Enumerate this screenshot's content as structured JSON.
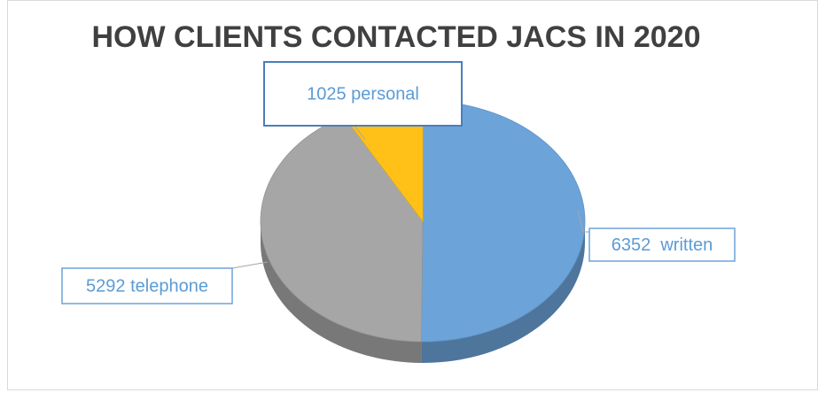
{
  "chart_data": {
    "type": "pie",
    "title": "HOW CLIENTS CONTACTED JACS IN 2020",
    "values": [
      6352,
      5292,
      1025
    ],
    "value_labels": [
      "6352  written",
      "5292 telephone",
      "1025 personal"
    ],
    "colors": [
      "#6ca3d9",
      "#a6a6a6",
      "#ffc118"
    ]
  }
}
